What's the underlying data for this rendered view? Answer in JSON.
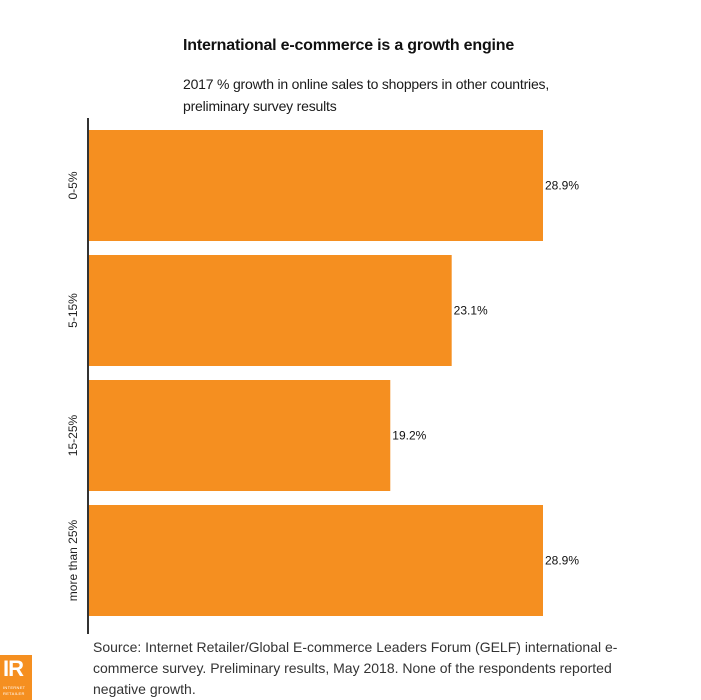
{
  "chart_data": {
    "type": "bar",
    "orientation": "horizontal",
    "title": "International e-commerce is a growth engine",
    "subtitle": "2017 % growth in online sales to shoppers in other countries, preliminary survey results",
    "categories": [
      "0-5%",
      "5-15%",
      "15-25%",
      "more than 25%"
    ],
    "values": [
      28.9,
      23.1,
      19.2,
      28.9
    ],
    "data_labels": [
      "28.9%",
      "23.1%",
      "19.2%",
      "28.9%"
    ],
    "xlabel": "",
    "ylabel": "",
    "xlim": [
      0,
      30
    ],
    "grid": false,
    "legend": "none",
    "bar_color": "#f58f20"
  },
  "source": "Source: Internet Retailer/Global E-commerce Leaders Forum (GELF) international e-commerce survey. Preliminary results, May 2018. None of the respondents reported negative growth.",
  "logo": {
    "mark": "IR",
    "line1": "INTERNET",
    "line2": "RETAILER"
  }
}
